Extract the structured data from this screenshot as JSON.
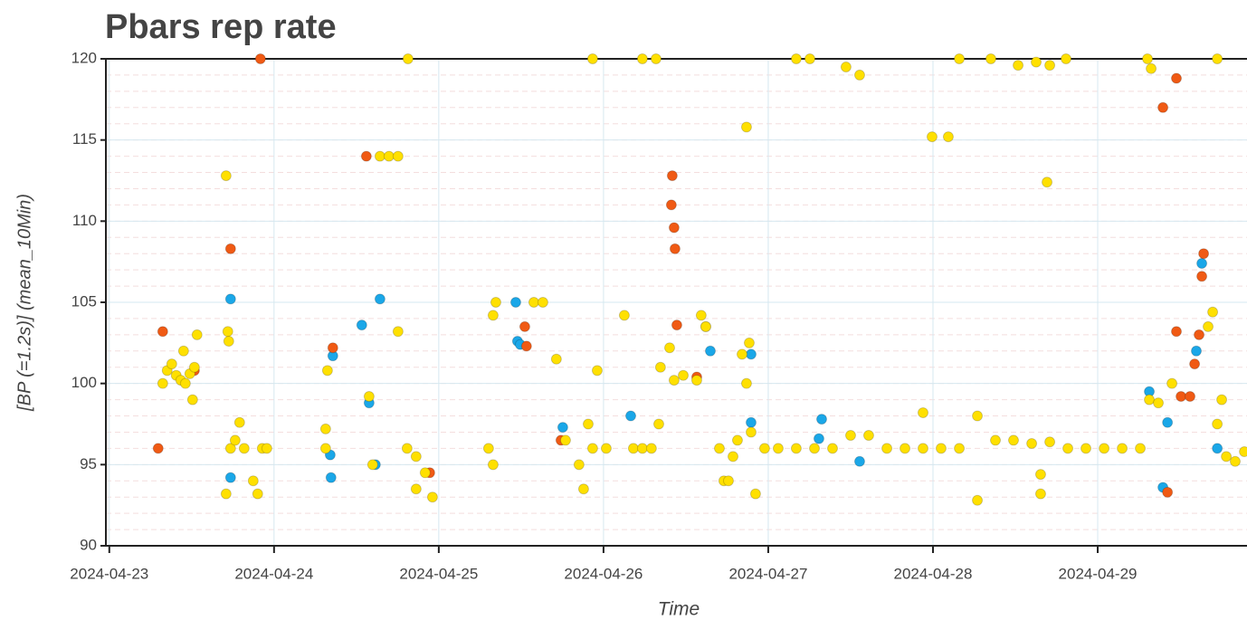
{
  "chart_data": {
    "type": "scatter",
    "title": "Pbars rep rate",
    "xlabel": "Time",
    "ylabel": "[BP (=1.2s)] (mean_10Min)",
    "xlim": [
      "2024-04-22 23:30",
      "2024-04-29 21:45"
    ],
    "xticks": [
      "2024-04-23",
      "2024-04-24",
      "2024-04-25",
      "2024-04-26",
      "2024-04-27",
      "2024-04-28",
      "2024-04-29"
    ],
    "ylim": [
      90,
      120
    ],
    "yticks": [
      90,
      95,
      100,
      105,
      110,
      115,
      120
    ],
    "grid": true,
    "series": [
      {
        "color": "#1aa7e8",
        "x": [
          "2024-04-23 17:40",
          "2024-04-23 17:40",
          "2024-04-24 08:34",
          "2024-04-24 08:18",
          "2024-04-24 08:11",
          "2024-04-24 12:47",
          "2024-04-24 13:51",
          "2024-04-24 15:26",
          "2024-04-24 14:46",
          "2024-04-25 11:13",
          "2024-04-25 11:28",
          "2024-04-25 11:52",
          "2024-04-25 18:04",
          "2024-04-26 03:58",
          "2024-04-26 15:34",
          "2024-04-26 21:30",
          "2024-04-26 21:30",
          "2024-04-27 07:47",
          "2024-04-27 07:23",
          "2024-04-27 13:19",
          "2024-04-29 07:31",
          "2024-04-29 09:30",
          "2024-04-29 10:10",
          "2024-04-29 14:22",
          "2024-04-29 15:10",
          "2024-04-29 17:25"
        ],
        "values": [
          105.2,
          94.2,
          101.7,
          94.2,
          95.6,
          103.6,
          98.8,
          105.2,
          95,
          105,
          102.6,
          102.4,
          97.3,
          98,
          102,
          101.8,
          97.6,
          97.8,
          96.6,
          95.2,
          99.5,
          93.6,
          97.6,
          102,
          107.4,
          96
        ]
      },
      {
        "color": "#f05a14",
        "x": [
          "2024-04-23 07:07",
          "2024-04-23 07:47",
          "2024-04-23 12:24",
          "2024-04-23 17:40",
          "2024-04-23 22:01",
          "2024-04-24 08:34",
          "2024-04-24 13:27",
          "2024-04-24 22:41",
          "2024-04-25 12:32",
          "2024-04-25 12:47",
          "2024-04-25 17:48",
          "2024-04-26 10:01",
          "2024-04-26 09:53",
          "2024-04-26 10:17",
          "2024-04-26 10:25",
          "2024-04-26 10:41",
          "2024-04-26 13:35",
          "2024-04-29 09:30",
          "2024-04-29 11:28",
          "2024-04-29 11:28",
          "2024-04-29 10:10",
          "2024-04-29 12:08",
          "2024-04-29 13:27",
          "2024-04-29 14:07",
          "2024-04-29 14:46",
          "2024-04-29 15:10",
          "2024-04-29 15:26"
        ],
        "values": [
          96,
          103.2,
          100.8,
          108.3,
          120,
          102.2,
          114,
          94.5,
          103.5,
          102.3,
          96.5,
          112.8,
          111,
          109.6,
          108.3,
          103.6,
          100.4,
          117,
          118.8,
          103.2,
          93.3,
          99.2,
          99.2,
          101.2,
          103,
          106.6,
          108
        ]
      },
      {
        "color": "#ffe000",
        "x": [
          "2024-04-23 07:47",
          "2024-04-23 08:26",
          "2024-04-23 09:06",
          "2024-04-23 09:45",
          "2024-04-23 10:25",
          "2024-04-23 11:05",
          "2024-04-23 11:44",
          "2024-04-23 12:24",
          "2024-04-23 10:49",
          "2024-04-23 12:47",
          "2024-04-23 12:08",
          "2024-04-23 17:01",
          "2024-04-23 17:16",
          "2024-04-23 17:24",
          "2024-04-23 17:01",
          "2024-04-23 17:40",
          "2024-04-23 18:20",
          "2024-04-23 18:59",
          "2024-04-23 19:39",
          "2024-04-23 20:58",
          "2024-04-23 21:37",
          "2024-04-23 22:17",
          "2024-04-23 22:57",
          "2024-04-24 07:47",
          "2024-04-24 07:31",
          "2024-04-24 07:31",
          "2024-04-24 13:51",
          "2024-04-24 14:22",
          "2024-04-24 15:26",
          "2024-04-24 16:45",
          "2024-04-24 18:04",
          "2024-04-24 18:04",
          "2024-04-24 19:23",
          "2024-04-24 20:42",
          "2024-04-24 22:01",
          "2024-04-24 20:42",
          "2024-04-24 23:05",
          "2024-04-24 19:31",
          "2024-04-25 07:15",
          "2024-04-25 07:55",
          "2024-04-25 07:55",
          "2024-04-25 08:19",
          "2024-04-25 13:51",
          "2024-04-25 15:10",
          "2024-04-25 17:08",
          "2024-04-25 18:28",
          "2024-04-25 20:26",
          "2024-04-25 21:06",
          "2024-04-25 21:46",
          "2024-04-25 22:25",
          "2024-04-25 23:05",
          "2024-04-26 00:24",
          "2024-04-26 03:02",
          "2024-04-26 04:21",
          "2024-04-26 05:40",
          "2024-04-26 06:59",
          "2024-04-25 22:25",
          "2024-04-26 05:40",
          "2024-04-26 07:39",
          "2024-04-26 08:03",
          "2024-04-26 08:18",
          "2024-04-26 09:38",
          "2024-04-26 10:17",
          "2024-04-26 11:37",
          "2024-04-26 13:35",
          "2024-04-26 14:14",
          "2024-04-26 14:54",
          "2024-04-26 14:54",
          "2024-04-26 16:53",
          "2024-04-26 17:32",
          "2024-04-26 18:12",
          "2024-04-26 18:52",
          "2024-04-26 19:31",
          "2024-04-26 20:11",
          "2024-04-26 20:50",
          "2024-04-26 21:14",
          "2024-04-26 21:30",
          "2024-04-26 22:09",
          "2024-04-26 20:50",
          "2024-04-26 23:28",
          "2024-04-27 01:27",
          "2024-04-27 04:05",
          "2024-04-27 06:44",
          "2024-04-27 09:22",
          "2024-04-27 12:00",
          "2024-04-27 14:38",
          "2024-04-27 17:17",
          "2024-04-27 19:55",
          "2024-04-27 22:33",
          "2024-04-27 22:33",
          "2024-04-28 01:11",
          "2024-04-28 03:50",
          "2024-04-28 06:28",
          "2024-04-28 06:28",
          "2024-04-28 09:06",
          "2024-04-28 11:44",
          "2024-04-28 14:23",
          "2024-04-28 15:41",
          "2024-04-28 15:41",
          "2024-04-28 16:37",
          "2024-04-28 17:01",
          "2024-04-28 19:39",
          "2024-04-28 22:17",
          "2024-04-29 00:56",
          "2024-04-29 03:34",
          "2024-04-29 06:12",
          "2024-04-27 04:05",
          "2024-04-27 06:04",
          "2024-04-27 11:20",
          "2024-04-27 13:19",
          "2024-04-28 03:50",
          "2024-04-28 08:26",
          "2024-04-28 12:24",
          "2024-04-28 15:02",
          "2024-04-28 17:01",
          "2024-04-28 19:23",
          "2024-04-27 23:52",
          "2024-04-28 02:14",
          "2024-04-29 07:15",
          "2024-04-29 07:47",
          "2024-04-29 17:25",
          "2024-04-29 07:31",
          "2024-04-29 08:50",
          "2024-04-29 10:49",
          "2024-04-29 16:45",
          "2024-04-29 16:05",
          "2024-04-29 17:25",
          "2024-04-29 18:04",
          "2024-04-29 18:44",
          "2024-04-29 20:02",
          "2024-04-29 21:22"
        ],
        "values": [
          100,
          100.8,
          101.2,
          100.5,
          100.2,
          100,
          100.6,
          101,
          102,
          103,
          99,
          112.8,
          103.2,
          102.6,
          93.2,
          96,
          96.5,
          97.6,
          96,
          94,
          93.2,
          96,
          96,
          100.8,
          97.2,
          96,
          99.2,
          95,
          114,
          114,
          114,
          103.2,
          96,
          95.5,
          94.5,
          93.5,
          93,
          120,
          96,
          95,
          104.2,
          105,
          105,
          105,
          101.5,
          96.5,
          95,
          93.5,
          97.5,
          96,
          100.8,
          96,
          104.2,
          96,
          96,
          96,
          120,
          120,
          120,
          97.5,
          101,
          102.2,
          100.2,
          100.5,
          100.2,
          104.2,
          103.5,
          103.5,
          96,
          94,
          94,
          95.5,
          96.5,
          101.8,
          100,
          102.5,
          97,
          93.2,
          115.8,
          96,
          96,
          96,
          96,
          96,
          96.8,
          96.8,
          96,
          96,
          98.2,
          96,
          96,
          96,
          98,
          92.8,
          96.5,
          96.5,
          96.3,
          94.4,
          93.2,
          112.4,
          96.4,
          96,
          96,
          96,
          96,
          96,
          120,
          120,
          119.5,
          119,
          120,
          120,
          119.6,
          119.8,
          119.6,
          120,
          115.2,
          115.2,
          120,
          119.4,
          120,
          99,
          98.8,
          100,
          104.4,
          103.5,
          97.5,
          99,
          95.5,
          95.2,
          95.8
        ]
      }
    ]
  }
}
